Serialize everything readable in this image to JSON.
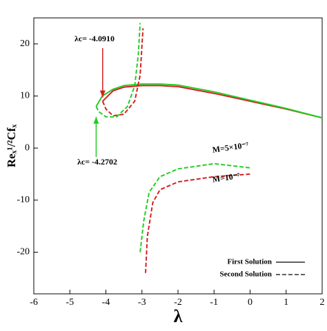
{
  "chart_data": {
    "type": "line",
    "x_label": "λ",
    "y_label": "Reₓ¹/²Cfₓ",
    "xlim": [
      -6,
      2
    ],
    "ylim": [
      -28,
      25
    ],
    "xticks": [
      -6,
      -5,
      -4,
      -3,
      -2,
      -1,
      0,
      1,
      2
    ],
    "yticks": [
      -20,
      -10,
      0,
      10,
      20
    ],
    "legend": [
      {
        "name": "First Solution",
        "dash": "solid"
      },
      {
        "name": "Second Solution",
        "dash": "dashed"
      }
    ],
    "legend_position": "lower right",
    "series": [
      {
        "color": "#d42020",
        "dash": "solid",
        "x": [
          -4.09,
          -3.8,
          -3.5,
          -3,
          -2.5,
          -2,
          -1,
          0,
          1,
          2
        ],
        "values": [
          9,
          11,
          11.7,
          12,
          12,
          11.8,
          10.5,
          9,
          7.5,
          5.8
        ]
      },
      {
        "color": "#22cc22",
        "dash": "solid",
        "x": [
          -4.27,
          -4.1,
          -3.8,
          -3.5,
          -3,
          -2.5,
          -2,
          -1,
          0,
          1,
          2
        ],
        "values": [
          8,
          10,
          11.3,
          12,
          12.3,
          12.3,
          12.1,
          10.8,
          9.2,
          7.6,
          5.8
        ]
      },
      {
        "color": "#d42020",
        "dash": "dashed",
        "x": [
          -4.09,
          -4.0,
          -3.8,
          -3.5,
          -3.2,
          -3.05,
          -2.97,
          null,
          -2.9,
          -2.85,
          -2.7,
          -2.5,
          -2,
          -1,
          0
        ],
        "values": [
          9,
          7.5,
          6.2,
          6.5,
          9,
          14,
          23,
          null,
          -24,
          -17,
          -10.5,
          -8,
          -6.5,
          -5.5,
          -5
        ]
      },
      {
        "color": "#22cc22",
        "dash": "dashed",
        "x": [
          -4.27,
          -4.2,
          -4.0,
          -3.7,
          -3.4,
          -3.2,
          -3.1,
          -3.05,
          null,
          -3.05,
          -2.95,
          -2.8,
          -2.5,
          -2,
          -1,
          0
        ],
        "values": [
          8,
          7,
          6,
          6,
          8,
          12,
          18,
          24,
          null,
          -20,
          -14,
          -8.5,
          -5.5,
          -4,
          -3,
          -3.8
        ]
      }
    ],
    "annotations": [
      "λc= -4.0910",
      "λc= -4.2702",
      "M=5×10⁻⁷",
      "M=10⁻⁷"
    ]
  }
}
